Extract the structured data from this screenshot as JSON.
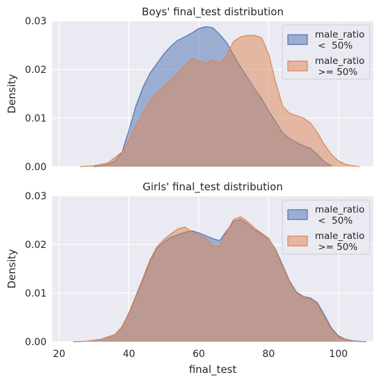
{
  "chart_data": [
    {
      "type": "area",
      "title": "Boys' final_test distribution",
      "xlabel": "",
      "ylabel": "Density",
      "xlim": [
        18,
        110
      ],
      "ylim": [
        0,
        0.03
      ],
      "yticks": [
        "0.00",
        "0.01",
        "0.02",
        "0.03"
      ],
      "xticks": [],
      "grid": true,
      "legend": {
        "position": "top-right",
        "entries": [
          {
            "label_line1": "male_ratio",
            "label_line2": " <  50%"
          },
          {
            "label_line1": "male_ratio",
            "label_line2": " >= 50%"
          }
        ]
      },
      "series": [
        {
          "name": "male_ratio <  50%",
          "color": "#4c72b0",
          "x": [
            30,
            32,
            34,
            36,
            38,
            40,
            42,
            44,
            46,
            48,
            50,
            52,
            54,
            56,
            58,
            60,
            62,
            64,
            66,
            68,
            70,
            72,
            74,
            76,
            78,
            80,
            82,
            84,
            86,
            88,
            90,
            92,
            94,
            96,
            98
          ],
          "y": [
            0.0,
            0.0002,
            0.0005,
            0.0012,
            0.003,
            0.0075,
            0.0125,
            0.0163,
            0.0192,
            0.0212,
            0.0232,
            0.0248,
            0.026,
            0.0267,
            0.0275,
            0.0284,
            0.0288,
            0.0286,
            0.0272,
            0.0255,
            0.023,
            0.0205,
            0.0183,
            0.016,
            0.014,
            0.0115,
            0.0093,
            0.007,
            0.0058,
            0.005,
            0.0043,
            0.0038,
            0.0025,
            0.001,
            0.0002
          ]
        },
        {
          "name": "male_ratio >= 50%",
          "color": "#dd8452",
          "x": [
            26,
            30,
            34,
            38,
            40,
            42,
            44,
            46,
            48,
            50,
            52,
            54,
            56,
            58,
            60,
            62,
            64,
            66,
            68,
            70,
            72,
            74,
            76,
            78,
            80,
            82,
            84,
            86,
            88,
            90,
            92,
            94,
            96,
            98,
            100,
            102,
            104,
            106
          ],
          "y": [
            0.0,
            0.0002,
            0.0008,
            0.003,
            0.0055,
            0.0085,
            0.011,
            0.0135,
            0.0153,
            0.0165,
            0.0178,
            0.0192,
            0.0208,
            0.0222,
            0.0218,
            0.0212,
            0.022,
            0.0212,
            0.023,
            0.0258,
            0.0267,
            0.027,
            0.027,
            0.0265,
            0.0232,
            0.0175,
            0.0125,
            0.011,
            0.0105,
            0.01,
            0.009,
            0.007,
            0.0045,
            0.0025,
            0.0012,
            0.0005,
            0.0002,
            0.0
          ]
        }
      ]
    },
    {
      "type": "area",
      "title": "Girls' final_test distribution",
      "xlabel": "final_test",
      "ylabel": "Density",
      "xlim": [
        18,
        110
      ],
      "ylim": [
        0,
        0.03
      ],
      "yticks": [
        "0.00",
        "0.01",
        "0.02",
        "0.03"
      ],
      "xticks": [
        "20",
        "40",
        "60",
        "80",
        "100"
      ],
      "grid": true,
      "legend": {
        "position": "top-right",
        "entries": [
          {
            "label_line1": "male_ratio",
            "label_line2": " <  50%"
          },
          {
            "label_line1": "male_ratio",
            "label_line2": " >= 50%"
          }
        ]
      },
      "series": [
        {
          "name": "male_ratio <  50%",
          "color": "#4c72b0",
          "x": [
            24,
            28,
            32,
            36,
            38,
            40,
            42,
            44,
            46,
            48,
            50,
            52,
            54,
            56,
            58,
            60,
            62,
            64,
            66,
            68,
            70,
            72,
            74,
            76,
            78,
            80,
            82,
            84,
            86,
            88,
            90,
            92,
            94,
            96,
            98,
            100,
            102,
            104,
            108
          ],
          "y": [
            0.0,
            0.0001,
            0.0005,
            0.0015,
            0.003,
            0.0058,
            0.0092,
            0.0128,
            0.0165,
            0.0192,
            0.0205,
            0.0215,
            0.022,
            0.0225,
            0.0228,
            0.0224,
            0.0218,
            0.0212,
            0.0208,
            0.0228,
            0.0248,
            0.0252,
            0.0242,
            0.023,
            0.0222,
            0.0212,
            0.019,
            0.0158,
            0.0125,
            0.0102,
            0.0093,
            0.009,
            0.008,
            0.0055,
            0.0028,
            0.0012,
            0.0005,
            0.0002,
            0.0
          ]
        },
        {
          "name": "male_ratio >= 50%",
          "color": "#dd8452",
          "x": [
            24,
            28,
            32,
            36,
            38,
            40,
            42,
            44,
            46,
            48,
            50,
            52,
            54,
            56,
            58,
            60,
            62,
            64,
            66,
            68,
            70,
            72,
            74,
            76,
            78,
            80,
            82,
            84,
            86,
            88,
            90,
            92,
            94,
            96,
            98,
            100,
            102,
            104,
            108
          ],
          "y": [
            0.0,
            0.0001,
            0.0005,
            0.0015,
            0.0031,
            0.006,
            0.0095,
            0.0131,
            0.0168,
            0.0195,
            0.021,
            0.0222,
            0.0232,
            0.0236,
            0.0226,
            0.022,
            0.0212,
            0.0197,
            0.0196,
            0.0226,
            0.0252,
            0.0257,
            0.0247,
            0.0234,
            0.0223,
            0.0213,
            0.0188,
            0.0155,
            0.0123,
            0.01,
            0.0092,
            0.0088,
            0.0076,
            0.005,
            0.0025,
            0.001,
            0.0004,
            0.0001,
            0.0
          ]
        }
      ]
    }
  ]
}
